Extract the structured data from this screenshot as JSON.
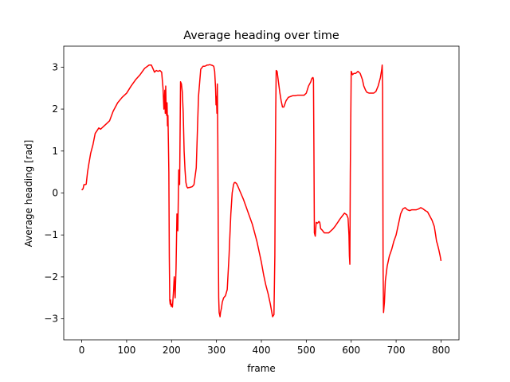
{
  "chart_data": {
    "type": "line",
    "title": "Average heading over time",
    "xlabel": "frame",
    "ylabel": "Average heading [rad]",
    "xlim": [
      -40,
      840
    ],
    "ylim": [
      -3.5,
      3.5
    ],
    "xticks": [
      0,
      100,
      200,
      300,
      400,
      500,
      600,
      700,
      800
    ],
    "yticks": [
      -3,
      -2,
      -1,
      0,
      1,
      2,
      3
    ],
    "grid": false,
    "legend": "none",
    "series": [
      {
        "color": "#ff0000",
        "x": [
          0,
          3,
          5,
          8,
          10,
          13,
          16,
          20,
          25,
          30,
          35,
          38,
          42,
          48,
          55,
          62,
          70,
          80,
          90,
          100,
          110,
          120,
          130,
          140,
          150,
          155,
          158,
          162,
          166,
          170,
          174,
          178,
          181,
          183,
          185,
          186,
          187,
          188,
          189,
          190,
          191,
          192,
          193,
          194,
          195,
          196,
          197,
          198,
          199,
          200,
          202,
          204,
          206,
          208,
          210,
          212,
          214,
          216,
          218,
          220,
          222,
          224,
          226,
          228,
          230,
          232,
          234,
          236,
          238,
          240,
          243,
          246,
          250,
          255,
          260,
          265,
          270,
          273,
          276,
          279,
          282,
          285,
          288,
          291,
          294,
          296,
          298,
          299,
          300,
          301,
          302,
          303,
          304,
          305,
          306,
          307,
          308,
          309,
          310,
          311,
          313,
          316,
          320,
          324,
          328,
          332,
          335,
          338,
          340,
          342,
          345,
          348,
          352,
          356,
          360,
          365,
          370,
          375,
          380,
          385,
          390,
          395,
          400,
          405,
          410,
          415,
          420,
          425,
          428,
          430,
          431,
          432,
          433,
          435,
          438,
          441,
          444,
          447,
          450,
          455,
          460,
          465,
          470,
          475,
          480,
          485,
          490,
          495,
          500,
          505,
          510,
          512,
          514,
          515,
          516,
          517,
          518,
          520,
          522,
          525,
          528,
          530,
          532,
          535,
          540,
          545,
          550,
          555,
          560,
          565,
          570,
          575,
          580,
          585,
          590,
          593,
          595,
          596,
          597,
          598,
          600,
          603,
          606,
          610,
          615,
          620,
          625,
          628,
          632,
          635,
          640,
          645,
          650,
          655,
          660,
          665,
          668,
          669,
          670,
          671,
          672,
          674,
          676,
          680,
          685,
          690,
          695,
          700,
          705,
          710,
          715,
          720,
          725,
          730,
          735,
          740,
          745,
          750,
          755,
          760,
          765,
          770,
          775,
          780,
          785,
          788,
          790,
          792,
          795,
          798,
          800
        ],
        "y": [
          0.07,
          0.1,
          0.2,
          0.2,
          0.21,
          0.5,
          0.7,
          0.95,
          1.15,
          1.42,
          1.5,
          1.55,
          1.52,
          1.58,
          1.65,
          1.72,
          1.95,
          2.15,
          2.28,
          2.38,
          2.55,
          2.7,
          2.82,
          2.97,
          3.05,
          3.05,
          2.98,
          2.88,
          2.92,
          2.9,
          2.92,
          2.88,
          2.5,
          2.0,
          2.45,
          1.9,
          2.55,
          2.0,
          1.85,
          2.15,
          1.6,
          1.85,
          1.2,
          0.5,
          -1.5,
          -2.55,
          -2.65,
          -2.55,
          -2.7,
          -2.65,
          -2.72,
          -2.4,
          -2.0,
          -2.5,
          -1.8,
          -0.5,
          -0.9,
          0.55,
          0.2,
          2.65,
          2.6,
          2.4,
          1.9,
          1.0,
          0.55,
          0.25,
          0.15,
          0.12,
          0.13,
          0.13,
          0.14,
          0.15,
          0.2,
          0.6,
          2.3,
          2.95,
          3.02,
          3.02,
          3.03,
          3.05,
          3.05,
          3.06,
          3.05,
          3.04,
          3.02,
          2.9,
          2.5,
          2.1,
          2.3,
          1.9,
          2.6,
          1.3,
          -1.0,
          -2.5,
          -2.85,
          -2.9,
          -2.95,
          -2.85,
          -2.8,
          -2.75,
          -2.6,
          -2.5,
          -2.45,
          -2.3,
          -1.5,
          -0.5,
          0.0,
          0.2,
          0.25,
          0.25,
          0.22,
          0.15,
          0.05,
          -0.05,
          -0.15,
          -0.3,
          -0.45,
          -0.6,
          -0.75,
          -0.95,
          -1.15,
          -1.4,
          -1.65,
          -1.95,
          -2.2,
          -2.4,
          -2.65,
          -2.95,
          -2.9,
          -1.5,
          0.5,
          2.0,
          2.92,
          2.9,
          2.65,
          2.4,
          2.2,
          2.05,
          2.05,
          2.2,
          2.28,
          2.3,
          2.32,
          2.32,
          2.33,
          2.33,
          2.33,
          2.33,
          2.38,
          2.55,
          2.65,
          2.72,
          2.75,
          2.75,
          2.7,
          1.0,
          -0.95,
          -1.03,
          -0.7,
          -0.72,
          -0.68,
          -0.7,
          -0.85,
          -0.88,
          -0.95,
          -0.95,
          -0.95,
          -0.9,
          -0.85,
          -0.78,
          -0.7,
          -0.62,
          -0.55,
          -0.48,
          -0.52,
          -0.6,
          -1.0,
          -1.5,
          -1.7,
          0.5,
          2.9,
          2.82,
          2.85,
          2.85,
          2.9,
          2.85,
          2.7,
          2.55,
          2.45,
          2.4,
          2.38,
          2.38,
          2.38,
          2.42,
          2.55,
          2.75,
          2.95,
          3.05,
          2.5,
          -1.8,
          -2.85,
          -2.6,
          -2.1,
          -1.75,
          -1.5,
          -1.35,
          -1.15,
          -1.0,
          -0.75,
          -0.5,
          -0.38,
          -0.35,
          -0.4,
          -0.42,
          -0.4,
          -0.4,
          -0.4,
          -0.38,
          -0.35,
          -0.38,
          -0.42,
          -0.45,
          -0.55,
          -0.65,
          -0.8,
          -1.0,
          -1.15,
          -1.22,
          -1.35,
          -1.5,
          -1.62
        ]
      }
    ]
  }
}
